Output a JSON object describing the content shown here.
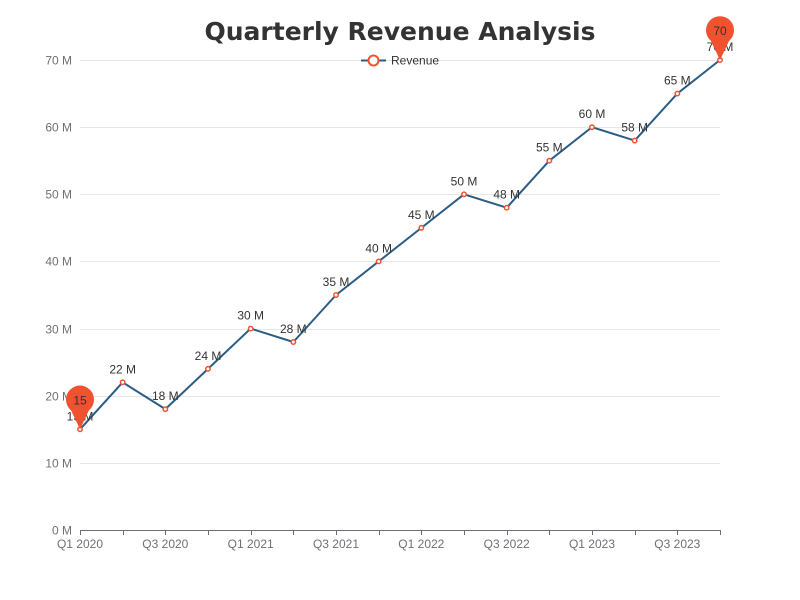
{
  "colors": {
    "line": "#2a5d86",
    "point_stroke": "#f0522f",
    "point_fill": "#ffffff",
    "pin": "#f0522f",
    "title": "#333333",
    "axis_text": "#6e7079",
    "grid": "#e6e6e6"
  },
  "chart_data": {
    "type": "line",
    "title": "Quarterly Revenue Analysis",
    "xlabel": "",
    "ylabel": "",
    "legend": {
      "entries": [
        "Revenue"
      ],
      "placement": "top-center"
    },
    "grid": true,
    "ylim": [
      0,
      70
    ],
    "y_ticks": [
      0,
      10,
      20,
      30,
      40,
      50,
      60,
      70
    ],
    "y_tick_suffix": " M",
    "categories": [
      "Q1 2020",
      "Q2 2020",
      "Q3 2020",
      "Q4 2020",
      "Q1 2021",
      "Q2 2021",
      "Q3 2021",
      "Q4 2021",
      "Q1 2022",
      "Q2 2022",
      "Q3 2022",
      "Q4 2022",
      "Q1 2023",
      "Q2 2023",
      "Q3 2023",
      "Q4 2023"
    ],
    "x_tick_labels": [
      "Q1 2020",
      "",
      "Q3 2020",
      "",
      "Q1 2021",
      "",
      "Q3 2021",
      "",
      "Q1 2022",
      "",
      "Q3 2022",
      "",
      "Q1 2023",
      "",
      "Q3 2023",
      ""
    ],
    "series": [
      {
        "name": "Revenue",
        "values": [
          15,
          22,
          18,
          24,
          30,
          28,
          35,
          40,
          45,
          50,
          48,
          55,
          60,
          58,
          65,
          70
        ],
        "label_suffix": " M"
      }
    ],
    "mark_points": [
      {
        "type": "min",
        "category": "Q1 2020",
        "value": 15,
        "label": "15"
      },
      {
        "type": "max",
        "category": "Q4 2023",
        "value": 70,
        "label": "70"
      }
    ]
  }
}
